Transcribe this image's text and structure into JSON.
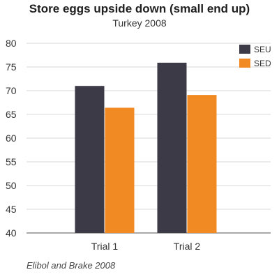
{
  "chart_data": {
    "type": "bar",
    "title": "Store eggs upside down (small end up)",
    "subtitle": "Turkey 2008",
    "categories": [
      "Trial 1",
      "Trial 2"
    ],
    "series": [
      {
        "name": "SEU",
        "values": [
          71.0,
          75.9
        ],
        "color": "#3d3a47"
      },
      {
        "name": "SED",
        "values": [
          66.4,
          69.1
        ],
        "color": "#f28a24"
      }
    ],
    "xlabel": "",
    "ylabel": "",
    "ylim": [
      40,
      80
    ],
    "yticks": [
      40,
      45,
      50,
      55,
      60,
      65,
      70,
      75,
      80
    ],
    "grid": true,
    "legend_position": "top-right",
    "source": "Elibol and Brake 2008"
  }
}
